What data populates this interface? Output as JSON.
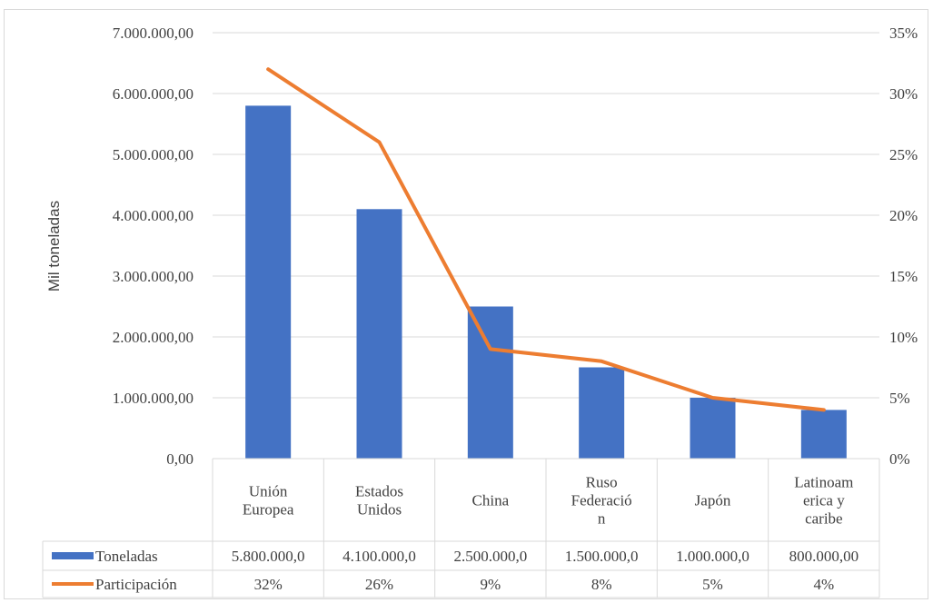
{
  "chart_data": {
    "type": "bar",
    "ylabel": "Mil toneladas",
    "ylim": [
      0,
      7000000
    ],
    "y2lim": [
      0,
      0.35
    ],
    "y_ticks": [
      "0,00",
      "1.000.000,00",
      "2.000.000,00",
      "3.000.000,00",
      "4.000.000,00",
      "5.000.000,00",
      "6.000.000,00",
      "7.000.000,00"
    ],
    "y2_ticks": [
      "0%",
      "5%",
      "10%",
      "15%",
      "20%",
      "25%",
      "30%",
      "35%"
    ],
    "categories": [
      [
        "Unión",
        "Europea"
      ],
      [
        "Estados",
        "Unidos"
      ],
      [
        "China"
      ],
      [
        "Ruso",
        "Federació",
        "n"
      ],
      [
        "Japón"
      ],
      [
        "Latinoam",
        "erica y",
        "caribe"
      ]
    ],
    "series": [
      {
        "name": "Toneladas",
        "kind": "bar",
        "axis": "left",
        "color": "#4472c4",
        "values": [
          5800000,
          4100000,
          2500000,
          1500000,
          1000000,
          800000
        ],
        "table_labels": [
          "5.800.000,0",
          "4.100.000,0",
          "2.500.000,0",
          "1.500.000,0",
          "1.000.000,0",
          "800.000,00"
        ]
      },
      {
        "name": "Participación",
        "kind": "line",
        "axis": "right",
        "color": "#ed7d31",
        "values": [
          0.32,
          0.26,
          0.09,
          0.08,
          0.05,
          0.04
        ],
        "table_labels": [
          "32%",
          "26%",
          "9%",
          "8%",
          "5%",
          "4%"
        ]
      }
    ],
    "grid": true,
    "legend": "data table"
  }
}
